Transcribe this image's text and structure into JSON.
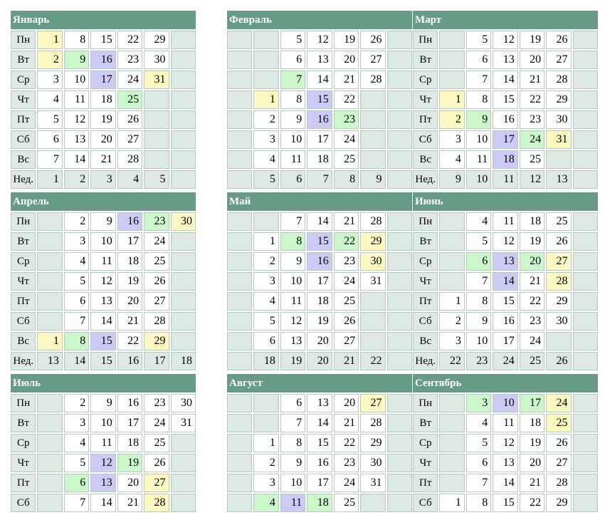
{
  "colors": {
    "header_green": "#679b86",
    "label_bg": "#dfe9e3",
    "highlight_yellow": "#fbf8c2",
    "highlight_green": "#cbf7cb",
    "highlight_blue": "#cbcbf5"
  },
  "row_labels": [
    "Пн",
    "Вт",
    "Ср",
    "Чт",
    "Пт",
    "Сб",
    "Вс",
    "Нед."
  ],
  "months": [
    {
      "name": "Январь",
      "rows": [
        [
          [
            1,
            "y"
          ],
          [
            8,
            ""
          ],
          [
            15,
            ""
          ],
          [
            22,
            ""
          ],
          [
            29,
            ""
          ],
          null
        ],
        [
          [
            2,
            "y"
          ],
          [
            9,
            "g"
          ],
          [
            16,
            "b"
          ],
          [
            23,
            ""
          ],
          [
            30,
            ""
          ],
          null
        ],
        [
          [
            3,
            ""
          ],
          [
            10,
            ""
          ],
          [
            17,
            "b"
          ],
          [
            24,
            ""
          ],
          [
            31,
            "y"
          ],
          null
        ],
        [
          [
            4,
            ""
          ],
          [
            11,
            ""
          ],
          [
            18,
            ""
          ],
          [
            25,
            "g"
          ],
          null,
          null
        ],
        [
          [
            5,
            ""
          ],
          [
            12,
            ""
          ],
          [
            19,
            ""
          ],
          [
            26,
            ""
          ],
          null,
          null
        ],
        [
          [
            6,
            ""
          ],
          [
            13,
            ""
          ],
          [
            20,
            ""
          ],
          [
            27,
            ""
          ],
          null,
          null
        ],
        [
          [
            7,
            ""
          ],
          [
            14,
            ""
          ],
          [
            21,
            ""
          ],
          [
            28,
            ""
          ],
          null,
          null
        ]
      ],
      "weeks": [
        "1",
        "2",
        "3",
        "4",
        "5",
        ""
      ]
    },
    {
      "name": "Февраль",
      "rows": [
        [
          null,
          [
            5,
            ""
          ],
          [
            12,
            ""
          ],
          [
            19,
            ""
          ],
          [
            26,
            ""
          ],
          null
        ],
        [
          null,
          [
            6,
            ""
          ],
          [
            13,
            ""
          ],
          [
            20,
            ""
          ],
          [
            27,
            ""
          ],
          null
        ],
        [
          null,
          [
            7,
            "g"
          ],
          [
            14,
            ""
          ],
          [
            21,
            ""
          ],
          [
            28,
            ""
          ],
          null
        ],
        [
          [
            1,
            "y"
          ],
          [
            8,
            ""
          ],
          [
            15,
            "b"
          ],
          [
            22,
            ""
          ],
          null,
          null
        ],
        [
          [
            2,
            ""
          ],
          [
            9,
            ""
          ],
          [
            16,
            "b"
          ],
          [
            23,
            "g"
          ],
          null,
          null
        ],
        [
          [
            3,
            ""
          ],
          [
            10,
            ""
          ],
          [
            17,
            ""
          ],
          [
            24,
            ""
          ],
          null,
          null
        ],
        [
          [
            4,
            ""
          ],
          [
            11,
            ""
          ],
          [
            18,
            ""
          ],
          [
            25,
            ""
          ],
          null,
          null
        ]
      ],
      "weeks": [
        "5",
        "6",
        "7",
        "8",
        "9",
        ""
      ]
    },
    {
      "name": "Март",
      "rows": [
        [
          null,
          [
            5,
            ""
          ],
          [
            12,
            ""
          ],
          [
            19,
            ""
          ],
          [
            26,
            ""
          ],
          null
        ],
        [
          null,
          [
            6,
            ""
          ],
          [
            13,
            ""
          ],
          [
            20,
            ""
          ],
          [
            27,
            ""
          ],
          null
        ],
        [
          null,
          [
            7,
            ""
          ],
          [
            14,
            ""
          ],
          [
            21,
            ""
          ],
          [
            28,
            ""
          ],
          null
        ],
        [
          [
            1,
            "y"
          ],
          [
            8,
            ""
          ],
          [
            15,
            ""
          ],
          [
            22,
            ""
          ],
          [
            29,
            ""
          ],
          null
        ],
        [
          [
            2,
            "y"
          ],
          [
            9,
            "g"
          ],
          [
            16,
            ""
          ],
          [
            23,
            ""
          ],
          [
            30,
            ""
          ],
          null
        ],
        [
          [
            3,
            ""
          ],
          [
            10,
            ""
          ],
          [
            17,
            "b"
          ],
          [
            24,
            "g"
          ],
          [
            31,
            "y"
          ],
          null
        ],
        [
          [
            4,
            ""
          ],
          [
            11,
            ""
          ],
          [
            18,
            "b"
          ],
          [
            25,
            ""
          ],
          null,
          null
        ]
      ],
      "weeks": [
        "9",
        "10",
        "11",
        "12",
        "13",
        ""
      ]
    },
    {
      "name": "Апрель",
      "rows": [
        [
          null,
          [
            2,
            ""
          ],
          [
            9,
            ""
          ],
          [
            16,
            "b"
          ],
          [
            23,
            "g"
          ],
          [
            30,
            "y"
          ]
        ],
        [
          null,
          [
            3,
            ""
          ],
          [
            10,
            ""
          ],
          [
            17,
            ""
          ],
          [
            24,
            ""
          ],
          null
        ],
        [
          null,
          [
            4,
            ""
          ],
          [
            11,
            ""
          ],
          [
            18,
            ""
          ],
          [
            25,
            ""
          ],
          null
        ],
        [
          null,
          [
            5,
            ""
          ],
          [
            12,
            ""
          ],
          [
            19,
            ""
          ],
          [
            26,
            ""
          ],
          null
        ],
        [
          null,
          [
            6,
            ""
          ],
          [
            13,
            ""
          ],
          [
            20,
            ""
          ],
          [
            27,
            ""
          ],
          null
        ],
        [
          null,
          [
            7,
            ""
          ],
          [
            14,
            ""
          ],
          [
            21,
            ""
          ],
          [
            28,
            ""
          ],
          null
        ],
        [
          [
            1,
            "y"
          ],
          [
            8,
            "g"
          ],
          [
            15,
            "b"
          ],
          [
            22,
            ""
          ],
          [
            29,
            "y"
          ],
          null
        ]
      ],
      "weeks": [
        "13",
        "14",
        "15",
        "16",
        "17",
        "18"
      ]
    },
    {
      "name": "Май",
      "rows": [
        [
          null,
          [
            7,
            ""
          ],
          [
            14,
            ""
          ],
          [
            21,
            ""
          ],
          [
            28,
            ""
          ],
          null
        ],
        [
          [
            1,
            ""
          ],
          [
            8,
            "g"
          ],
          [
            15,
            "b"
          ],
          [
            22,
            "g"
          ],
          [
            29,
            "y"
          ],
          null
        ],
        [
          [
            2,
            ""
          ],
          [
            9,
            ""
          ],
          [
            16,
            "b"
          ],
          [
            23,
            ""
          ],
          [
            30,
            "y"
          ],
          null
        ],
        [
          [
            3,
            ""
          ],
          [
            10,
            ""
          ],
          [
            17,
            ""
          ],
          [
            24,
            ""
          ],
          [
            31,
            ""
          ],
          null
        ],
        [
          [
            4,
            ""
          ],
          [
            11,
            ""
          ],
          [
            18,
            ""
          ],
          [
            25,
            ""
          ],
          null,
          null
        ],
        [
          [
            5,
            ""
          ],
          [
            12,
            ""
          ],
          [
            19,
            ""
          ],
          [
            26,
            ""
          ],
          null,
          null
        ],
        [
          [
            6,
            ""
          ],
          [
            13,
            ""
          ],
          [
            20,
            ""
          ],
          [
            27,
            ""
          ],
          null,
          null
        ]
      ],
      "weeks": [
        "18",
        "19",
        "20",
        "21",
        "22",
        ""
      ]
    },
    {
      "name": "Июнь",
      "rows": [
        [
          null,
          [
            4,
            ""
          ],
          [
            11,
            ""
          ],
          [
            18,
            ""
          ],
          [
            25,
            ""
          ],
          null
        ],
        [
          null,
          [
            5,
            ""
          ],
          [
            12,
            ""
          ],
          [
            19,
            ""
          ],
          [
            26,
            ""
          ],
          null
        ],
        [
          null,
          [
            6,
            "g"
          ],
          [
            13,
            "b"
          ],
          [
            20,
            "g"
          ],
          [
            27,
            "y"
          ],
          null
        ],
        [
          null,
          [
            7,
            ""
          ],
          [
            14,
            "b"
          ],
          [
            21,
            ""
          ],
          [
            28,
            "y"
          ],
          null
        ],
        [
          [
            1,
            ""
          ],
          [
            8,
            ""
          ],
          [
            15,
            ""
          ],
          [
            22,
            ""
          ],
          [
            29,
            ""
          ],
          null
        ],
        [
          [
            2,
            ""
          ],
          [
            9,
            ""
          ],
          [
            16,
            ""
          ],
          [
            23,
            ""
          ],
          [
            30,
            ""
          ],
          null
        ],
        [
          [
            3,
            ""
          ],
          [
            10,
            ""
          ],
          [
            17,
            ""
          ],
          [
            24,
            ""
          ],
          null,
          null
        ]
      ],
      "weeks": [
        "22",
        "23",
        "24",
        "25",
        "26",
        ""
      ]
    },
    {
      "name": "Июль",
      "rows": [
        [
          null,
          [
            2,
            ""
          ],
          [
            9,
            ""
          ],
          [
            16,
            ""
          ],
          [
            23,
            ""
          ],
          [
            30,
            ""
          ]
        ],
        [
          null,
          [
            3,
            ""
          ],
          [
            10,
            ""
          ],
          [
            17,
            ""
          ],
          [
            24,
            ""
          ],
          [
            31,
            ""
          ]
        ],
        [
          null,
          [
            4,
            ""
          ],
          [
            11,
            ""
          ],
          [
            18,
            ""
          ],
          [
            25,
            ""
          ],
          null
        ],
        [
          null,
          [
            5,
            ""
          ],
          [
            12,
            "b"
          ],
          [
            19,
            "g"
          ],
          [
            26,
            ""
          ],
          null
        ],
        [
          null,
          [
            6,
            "g"
          ],
          [
            13,
            "b"
          ],
          [
            20,
            ""
          ],
          [
            27,
            "y"
          ],
          null
        ],
        [
          null,
          [
            7,
            ""
          ],
          [
            14,
            ""
          ],
          [
            21,
            ""
          ],
          [
            28,
            "y"
          ],
          null
        ]
      ],
      "weeks": []
    },
    {
      "name": "Август",
      "rows": [
        [
          null,
          [
            6,
            ""
          ],
          [
            13,
            ""
          ],
          [
            20,
            ""
          ],
          [
            27,
            "y"
          ],
          null
        ],
        [
          null,
          [
            7,
            ""
          ],
          [
            14,
            ""
          ],
          [
            21,
            ""
          ],
          [
            28,
            ""
          ],
          null
        ],
        [
          [
            1,
            ""
          ],
          [
            8,
            ""
          ],
          [
            15,
            ""
          ],
          [
            22,
            ""
          ],
          [
            29,
            ""
          ],
          null
        ],
        [
          [
            2,
            ""
          ],
          [
            9,
            ""
          ],
          [
            16,
            ""
          ],
          [
            23,
            ""
          ],
          [
            30,
            ""
          ],
          null
        ],
        [
          [
            3,
            ""
          ],
          [
            10,
            ""
          ],
          [
            17,
            ""
          ],
          [
            24,
            ""
          ],
          [
            31,
            ""
          ],
          null
        ],
        [
          [
            4,
            "g"
          ],
          [
            11,
            "b"
          ],
          [
            18,
            "g"
          ],
          [
            25,
            ""
          ],
          null,
          null
        ]
      ],
      "weeks": []
    },
    {
      "name": "Сентябрь",
      "rows": [
        [
          null,
          [
            3,
            "g"
          ],
          [
            10,
            "b"
          ],
          [
            17,
            "g"
          ],
          [
            24,
            "y"
          ],
          null
        ],
        [
          null,
          [
            4,
            ""
          ],
          [
            11,
            ""
          ],
          [
            18,
            ""
          ],
          [
            25,
            "y"
          ],
          null
        ],
        [
          null,
          [
            5,
            ""
          ],
          [
            12,
            ""
          ],
          [
            19,
            ""
          ],
          [
            26,
            ""
          ],
          null
        ],
        [
          null,
          [
            6,
            ""
          ],
          [
            13,
            ""
          ],
          [
            20,
            ""
          ],
          [
            27,
            ""
          ],
          null
        ],
        [
          null,
          [
            7,
            ""
          ],
          [
            14,
            ""
          ],
          [
            21,
            ""
          ],
          [
            28,
            ""
          ],
          null
        ],
        [
          [
            1,
            ""
          ],
          [
            8,
            ""
          ],
          [
            15,
            ""
          ],
          [
            22,
            ""
          ],
          [
            29,
            ""
          ],
          null
        ]
      ],
      "weeks": []
    }
  ]
}
